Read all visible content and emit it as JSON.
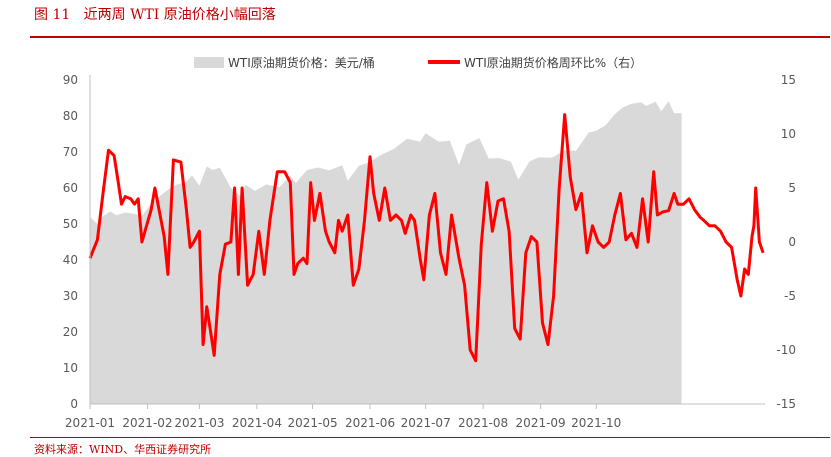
{
  "figure": {
    "title": "图 11   近两周 WTI 原油价格小幅回落",
    "source": "资料来源：WIND、华西证券研究所"
  },
  "colors": {
    "accent": "#c00000",
    "area": "#d9d9d9",
    "line": "#ff0000"
  },
  "chart_data": {
    "type": "area+line",
    "series": [
      {
        "name": "WTI原油期货价格：美元/桶",
        "type": "area",
        "axis": "left",
        "points": [
          [
            "2021-01-01",
            52
          ],
          [
            "2021-01-05",
            50
          ],
          [
            "2021-01-08",
            52.2
          ],
          [
            "2021-01-12",
            53.5
          ],
          [
            "2021-01-15",
            52.4
          ],
          [
            "2021-01-20",
            53.2
          ],
          [
            "2021-01-25",
            52.8
          ],
          [
            "2021-01-29",
            52.2
          ],
          [
            "2021-02-03",
            55.7
          ],
          [
            "2021-02-08",
            57.9
          ],
          [
            "2021-02-12",
            59.5
          ],
          [
            "2021-02-17",
            61
          ],
          [
            "2021-02-22",
            61.7
          ],
          [
            "2021-02-25",
            63.5
          ],
          [
            "2021-03-01",
            60.6
          ],
          [
            "2021-03-05",
            66
          ],
          [
            "2021-03-08",
            65
          ],
          [
            "2021-03-12",
            65.6
          ],
          [
            "2021-03-18",
            60
          ],
          [
            "2021-03-23",
            57.8
          ],
          [
            "2021-03-26",
            60.9
          ],
          [
            "2021-03-31",
            59.2
          ],
          [
            "2021-04-06",
            61
          ],
          [
            "2021-04-13",
            60.2
          ],
          [
            "2021-04-19",
            63.4
          ],
          [
            "2021-04-22",
            61.4
          ],
          [
            "2021-04-28",
            65
          ],
          [
            "2021-05-04",
            65.7
          ],
          [
            "2021-05-10",
            64.9
          ],
          [
            "2021-05-17",
            66.3
          ],
          [
            "2021-05-20",
            62
          ],
          [
            "2021-05-26",
            66.2
          ],
          [
            "2021-05-31",
            67
          ],
          [
            "2021-06-07",
            69.2
          ],
          [
            "2021-06-14",
            70.9
          ],
          [
            "2021-06-21",
            73.7
          ],
          [
            "2021-06-28",
            72.9
          ],
          [
            "2021-07-01",
            75.2
          ],
          [
            "2021-07-08",
            72.9
          ],
          [
            "2021-07-14",
            73.1
          ],
          [
            "2021-07-19",
            66.4
          ],
          [
            "2021-07-23",
            72.1
          ],
          [
            "2021-07-30",
            73.9
          ],
          [
            "2021-08-04",
            68.2
          ],
          [
            "2021-08-10",
            68.3
          ],
          [
            "2021-08-16",
            67.3
          ],
          [
            "2021-08-20",
            62.3
          ],
          [
            "2021-08-26",
            67.4
          ],
          [
            "2021-08-31",
            68.5
          ],
          [
            "2021-09-07",
            68.4
          ],
          [
            "2021-09-14",
            70.5
          ],
          [
            "2021-09-20",
            70.3
          ],
          [
            "2021-09-27",
            75.4
          ],
          [
            "2021-10-01",
            75.9
          ],
          [
            "2021-10-06",
            77.4
          ],
          [
            "2021-10-11",
            80.5
          ],
          [
            "2021-10-15",
            82.3
          ],
          [
            "2021-10-20",
            83.4
          ],
          [
            "2021-10-25",
            83.8
          ],
          [
            "2021-10-28",
            82.8
          ],
          [
            "2021-11-02",
            84
          ],
          [
            "2021-11-05",
            81.3
          ],
          [
            "2021-11-09",
            84.1
          ],
          [
            "2021-11-12",
            80.8
          ],
          [
            "2021-11-16",
            80.8
          ]
        ]
      },
      {
        "name": "WTI原油期货价格周环比%（右）",
        "type": "line",
        "axis": "right",
        "points": [
          [
            "2021-01-01",
            -1.5
          ],
          [
            "2021-01-05",
            0.2
          ],
          [
            "2021-01-08",
            4.5
          ],
          [
            "2021-01-11",
            8.5
          ],
          [
            "2021-01-14",
            8
          ],
          [
            "2021-01-16",
            5.8
          ],
          [
            "2021-01-18",
            3.5
          ],
          [
            "2021-01-20",
            4.2
          ],
          [
            "2021-01-23",
            4
          ],
          [
            "2021-01-25",
            3.5
          ],
          [
            "2021-01-27",
            4
          ],
          [
            "2021-01-29",
            0
          ],
          [
            "2021-02-03",
            3
          ],
          [
            "2021-02-05",
            5
          ],
          [
            "2021-02-10",
            0.5
          ],
          [
            "2021-02-12",
            -3
          ],
          [
            "2021-02-15",
            7.6
          ],
          [
            "2021-02-19",
            7.4
          ],
          [
            "2021-02-22",
            3
          ],
          [
            "2021-02-24",
            -0.5
          ],
          [
            "2021-02-26",
            0
          ],
          [
            "2021-03-01",
            1
          ],
          [
            "2021-03-03",
            -9.5
          ],
          [
            "2021-03-05",
            -6
          ],
          [
            "2021-03-09",
            -10.5
          ],
          [
            "2021-03-12",
            -3
          ],
          [
            "2021-03-15",
            -0.2
          ],
          [
            "2021-03-18",
            0
          ],
          [
            "2021-03-20",
            5
          ],
          [
            "2021-03-22",
            -3
          ],
          [
            "2021-03-24",
            5
          ],
          [
            "2021-03-27",
            -4
          ],
          [
            "2021-03-30",
            -3
          ],
          [
            "2021-04-02",
            1
          ],
          [
            "2021-04-05",
            -3
          ],
          [
            "2021-04-08",
            2
          ],
          [
            "2021-04-12",
            6.5
          ],
          [
            "2021-04-16",
            6.5
          ],
          [
            "2021-04-19",
            5.5
          ],
          [
            "2021-04-21",
            -3
          ],
          [
            "2021-04-23",
            -2
          ],
          [
            "2021-04-26",
            -1.5
          ],
          [
            "2021-04-28",
            -2
          ],
          [
            "2021-04-30",
            5.5
          ],
          [
            "2021-05-02",
            2
          ],
          [
            "2021-05-05",
            4.5
          ],
          [
            "2021-05-08",
            1
          ],
          [
            "2021-05-10",
            0
          ],
          [
            "2021-05-13",
            -1
          ],
          [
            "2021-05-15",
            2
          ],
          [
            "2021-05-17",
            1
          ],
          [
            "2021-05-20",
            2.5
          ],
          [
            "2021-05-23",
            -4
          ],
          [
            "2021-05-26",
            -2.5
          ],
          [
            "2021-05-29",
            2
          ],
          [
            "2021-06-01",
            7.9
          ],
          [
            "2021-06-03",
            4.5
          ],
          [
            "2021-06-06",
            2
          ],
          [
            "2021-06-09",
            5
          ],
          [
            "2021-06-12",
            2
          ],
          [
            "2021-06-15",
            2.5
          ],
          [
            "2021-06-18",
            2
          ],
          [
            "2021-06-20",
            0.8
          ],
          [
            "2021-06-23",
            2.5
          ],
          [
            "2021-06-25",
            2
          ],
          [
            "2021-06-28",
            -1.5
          ],
          [
            "2021-06-30",
            -3.5
          ],
          [
            "2021-07-03",
            2.5
          ],
          [
            "2021-07-06",
            4.5
          ],
          [
            "2021-07-09",
            -1
          ],
          [
            "2021-07-12",
            -3
          ],
          [
            "2021-07-15",
            2.5
          ],
          [
            "2021-07-19",
            -1.5
          ],
          [
            "2021-07-22",
            -4
          ],
          [
            "2021-07-25",
            -10
          ],
          [
            "2021-07-28",
            -11
          ],
          [
            "2021-07-31",
            -0.2
          ],
          [
            "2021-08-03",
            5.5
          ],
          [
            "2021-08-06",
            1
          ],
          [
            "2021-08-09",
            3.8
          ],
          [
            "2021-08-12",
            4
          ],
          [
            "2021-08-15",
            1
          ],
          [
            "2021-08-18",
            -8
          ],
          [
            "2021-08-21",
            -9
          ],
          [
            "2021-08-24",
            -1
          ],
          [
            "2021-08-27",
            0.5
          ],
          [
            "2021-08-30",
            0
          ],
          [
            "2021-09-02",
            -7.5
          ],
          [
            "2021-09-05",
            -9.5
          ],
          [
            "2021-09-08",
            -5
          ],
          [
            "2021-09-11",
            5
          ],
          [
            "2021-09-14",
            11.8
          ],
          [
            "2021-09-17",
            6
          ],
          [
            "2021-09-20",
            3
          ],
          [
            "2021-09-23",
            4.5
          ],
          [
            "2021-09-26",
            -1
          ],
          [
            "2021-09-29",
            1.5
          ],
          [
            "2021-10-02",
            0
          ],
          [
            "2021-10-05",
            -0.5
          ],
          [
            "2021-10-08",
            0
          ],
          [
            "2021-10-11",
            2.5
          ],
          [
            "2021-10-14",
            4.5
          ],
          [
            "2021-10-17",
            0.2
          ],
          [
            "2021-10-20",
            0.8
          ],
          [
            "2021-10-23",
            -0.5
          ],
          [
            "2021-10-26",
            4
          ],
          [
            "2021-10-29",
            0
          ],
          [
            "2021-11-01",
            6.5
          ],
          [
            "2021-11-03",
            2.5
          ],
          [
            "2021-11-06",
            2.8
          ],
          [
            "2021-11-09",
            2.9
          ],
          [
            "2021-11-12",
            4.5
          ],
          [
            "2021-11-14",
            3.5
          ],
          [
            "2021-11-17",
            3.5
          ],
          [
            "2021-11-20",
            4
          ],
          [
            "2021-11-23",
            3
          ],
          [
            "2021-11-26",
            2.3
          ],
          [
            "2021-11-28",
            2
          ],
          [
            "2021-12-01",
            1.5
          ],
          [
            "2021-12-04",
            1.5
          ],
          [
            "2021-12-07",
            1
          ],
          [
            "2021-12-10",
            0
          ],
          [
            "2021-12-13",
            -0.5
          ],
          [
            "2021-12-16",
            -3.5
          ],
          [
            "2021-12-18",
            -5
          ],
          [
            "2021-12-20",
            -2.5
          ],
          [
            "2021-12-22",
            -3
          ],
          [
            "2021-12-24",
            0.5
          ],
          [
            "2021-12-25",
            1.5
          ],
          [
            "2021-12-26",
            5
          ],
          [
            "2021-12-28",
            0
          ],
          [
            "2021-12-30",
            -1
          ]
        ]
      }
    ],
    "x_ticks": [
      "2021-01",
      "2021-02",
      "2021-03",
      "2021-04",
      "2021-05",
      "2021-06",
      "2021-07",
      "2021-08",
      "2021-09",
      "2021-10"
    ],
    "y_left": {
      "min": 0,
      "max": 90,
      "ticks": [
        0,
        10,
        20,
        30,
        40,
        50,
        60,
        70,
        80,
        90
      ]
    },
    "y_right": {
      "min": -15,
      "max": 15,
      "ticks": [
        -15,
        -10,
        -5,
        0,
        5,
        10,
        15
      ]
    },
    "grid": false,
    "legend": "top-center"
  }
}
